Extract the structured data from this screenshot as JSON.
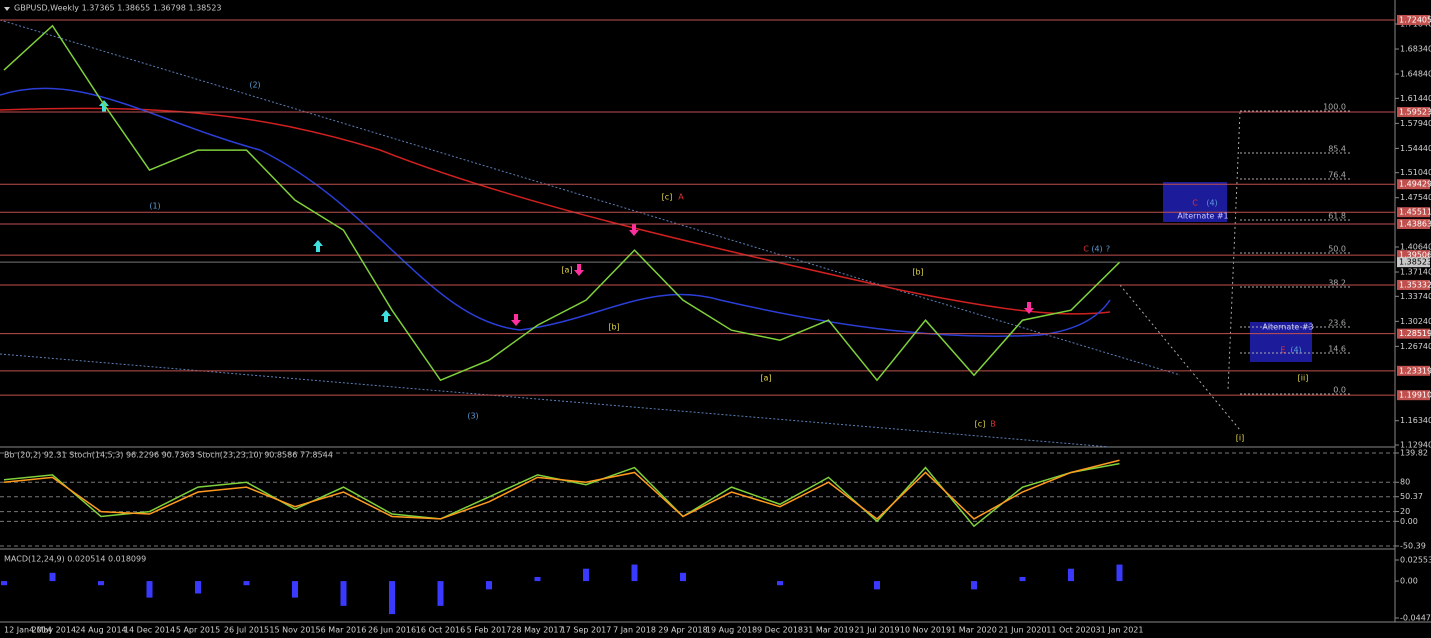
{
  "chart_data": [
    {
      "type": "line",
      "title": "GBPUSD,Weekly  1.37365 1.38655 1.36798 1.38523",
      "categories": [
        "12 Jan 2014",
        "4 May 2014",
        "24 Aug 2014",
        "14 Dec 2014",
        "5 Apr 2015",
        "26 Jul 2015",
        "15 Nov 2015",
        "6 Mar 2016",
        "26 Jun 2016",
        "16 Oct 2016",
        "5 Feb 2017",
        "28 May 2017",
        "17 Sep 2017",
        "7 Jan 2018",
        "29 Apr 2018",
        "19 Aug 2018",
        "9 Dec 2018",
        "31 Mar 2019",
        "21 Jul 2019",
        "10 Nov 2019",
        "1 Mar 2020",
        "21 Jun 2020",
        "11 Oct 2020",
        "31 Jan 2021"
      ],
      "series": [
        {
          "color": "#7fd13b",
          "values": [
            1.654,
            1.716,
            1.612,
            1.514,
            1.542,
            1.542,
            1.472,
            1.43,
            1.318,
            1.22,
            1.248,
            1.297,
            1.332,
            1.402,
            1.332,
            1.29,
            1.276,
            1.304,
            1.22,
            1.304,
            1.227,
            1.304,
            1.318,
            1.385
          ]
        }
      ],
      "ylim": [
        1.1266,
        1.752
      ],
      "yticks": [
        {
          "value": 1.7184,
          "label": "1.71840"
        },
        {
          "value": 1.6834,
          "label": "1.68340"
        },
        {
          "value": 1.6484,
          "label": "1.64840"
        },
        {
          "value": 1.6144,
          "label": "1.61440"
        },
        {
          "value": 1.5794,
          "label": "1.57940"
        },
        {
          "value": 1.5444,
          "label": "1.54440"
        },
        {
          "value": 1.5104,
          "label": "1.51040"
        },
        {
          "value": 1.4754,
          "label": "1.47540"
        },
        {
          "value": 1.4064,
          "label": "1.40640"
        },
        {
          "value": 1.3714,
          "label": "1.37140"
        },
        {
          "value": 1.3374,
          "label": "1.33740"
        },
        {
          "value": 1.3024,
          "label": "1.30240"
        },
        {
          "value": 1.2674,
          "label": "1.26740"
        },
        {
          "value": 1.1634,
          "label": "1.16340"
        },
        {
          "value": 1.1294,
          "label": "1.12940"
        }
      ],
      "levels": [
        {
          "value": 1.72405,
          "label": "1.72405"
        },
        {
          "value": 1.59523,
          "label": "1.59523"
        },
        {
          "value": 1.49429,
          "label": "1.49429"
        },
        {
          "value": 1.45511,
          "label": "1.45511"
        },
        {
          "value": 1.43863,
          "label": "1.43863"
        },
        {
          "value": 1.39506,
          "label": "1.39506"
        },
        {
          "value": 1.35332,
          "label": "1.35332"
        },
        {
          "value": 1.28519,
          "label": "1.28519"
        },
        {
          "value": 1.23319,
          "label": "1.23319"
        },
        {
          "value": 1.1991,
          "label": "1.19910"
        }
      ],
      "level_color": "#c0504d",
      "last_price": {
        "value": 1.38523,
        "label": "1.38523"
      },
      "annotations": [
        {
          "text": "(1)",
          "color": "#5b9bd5"
        },
        {
          "text": "(2)",
          "color": "#5b9bd5"
        },
        {
          "text": "(3)",
          "color": "#5b9bd5"
        },
        {
          "text": "[a]",
          "color": "#e5d84a"
        },
        {
          "text": "[b]",
          "color": "#e5d84a"
        },
        {
          "text": "[c]",
          "color": "#e5d84a"
        },
        {
          "text": "A",
          "color": "#e03030"
        },
        {
          "text": "[a]",
          "color": "#e5d84a"
        },
        {
          "text": "[b]",
          "color": "#e5d84a"
        },
        {
          "text": "[c]",
          "color": "#e5d84a"
        },
        {
          "text": "B",
          "color": "#e03030"
        },
        {
          "text": "C",
          "color": "#e03030"
        },
        {
          "text": "(4)",
          "color": "#5b9bd5"
        },
        {
          "text": "?",
          "color": "#5b9bd5"
        },
        {
          "text": "C",
          "color": "#e03030"
        },
        {
          "text": "(4)",
          "color": "#5b9bd5"
        },
        {
          "text": "Alternate #1",
          "color": "#c8c8ff"
        },
        {
          "text": "Alternate #3",
          "color": "#c8c8ff"
        },
        {
          "text": "E",
          "color": "#e03030"
        },
        {
          "text": "(4)",
          "color": "#5b9bd5"
        },
        {
          "text": "[ii]",
          "color": "#e5d84a"
        },
        {
          "text": "[i]",
          "color": "#e5d84a"
        }
      ],
      "fib_labels": [
        "100.0",
        "85.4",
        "76.4",
        "61.8",
        "50.0",
        "38.2",
        "23.6",
        "14.6",
        "0.0"
      ]
    },
    {
      "type": "line",
      "title": "Bb (20,2) 92.31  Stoch(14,5,3) 96.2296 90.7363  Stoch(23,23,10) 90.8586 77.8544",
      "series": [
        {
          "color": "#7fd13b",
          "values": [
            85,
            95,
            10,
            20,
            70,
            80,
            25,
            70,
            15,
            5,
            50,
            95,
            75,
            110,
            10,
            70,
            35,
            90,
            0,
            110,
            -10,
            70,
            100,
            118
          ]
        },
        {
          "color": "#ff9a1f",
          "values": [
            80,
            90,
            20,
            15,
            60,
            70,
            30,
            60,
            10,
            5,
            40,
            90,
            80,
            100,
            10,
            60,
            30,
            80,
            5,
            100,
            5,
            60,
            100,
            125
          ]
        }
      ],
      "ylim": [
        -50.39,
        139.82
      ],
      "yticks": [
        139.82,
        80,
        50.37,
        {
          "value": 0,
          "label": "0.00"
        },
        20,
        -50.39
      ]
    },
    {
      "type": "bar",
      "title": "MACD(12,24,9) 0.020514 0.018099",
      "color": "#3a3aff",
      "values": [
        -0.005,
        0.01,
        -0.005,
        -0.02,
        -0.015,
        -0.005,
        -0.02,
        -0.03,
        -0.04,
        -0.03,
        -0.01,
        0.005,
        0.015,
        0.02,
        0.01,
        0,
        -0.005,
        0,
        -0.01,
        0,
        -0.01,
        0.005,
        0.015,
        0.02
      ],
      "ylim": [
        -0.044702,
        0.025536
      ],
      "yticks": [
        0.025536,
        {
          "value": 0,
          "label": "0.00"
        },
        -0.044702
      ]
    }
  ]
}
